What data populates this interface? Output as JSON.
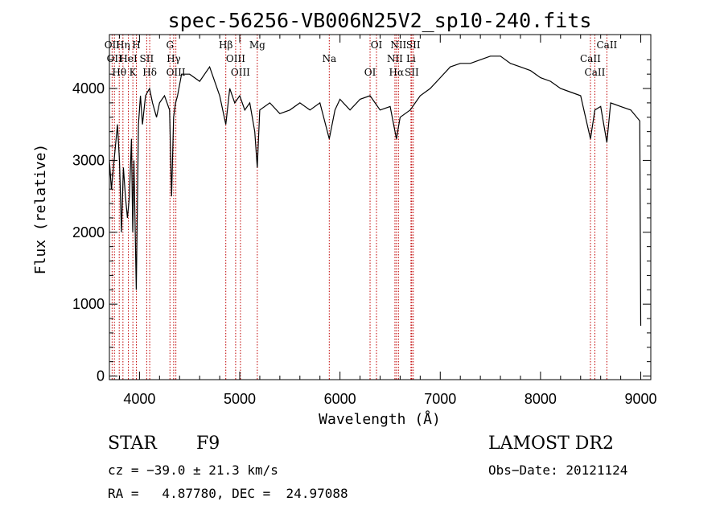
{
  "chart_data": {
    "type": "line",
    "title": "spec-56256-VB006N25V2_sp10-240.fits",
    "xlabel": "Wavelength (Å)",
    "ylabel": "Flux (relative)",
    "xlim": [
      3700,
      9100
    ],
    "ylim": [
      -50,
      4750
    ],
    "xticks": [
      4000,
      5000,
      6000,
      7000,
      8000,
      9000
    ],
    "yticks": [
      0,
      1000,
      2000,
      3000,
      4000
    ],
    "grid": false,
    "series": [
      {
        "color": "#000000",
        "x": [
          3700,
          3720,
          3740,
          3760,
          3780,
          3800,
          3820,
          3840,
          3860,
          3880,
          3900,
          3920,
          3933,
          3945,
          3968,
          3990,
          4010,
          4030,
          4060,
          4100,
          4130,
          4170,
          4200,
          4250,
          4300,
          4320,
          4340,
          4360,
          4380,
          4420,
          4500,
          4600,
          4700,
          4800,
          4861,
          4900,
          4950,
          5000,
          5050,
          5100,
          5150,
          5175,
          5200,
          5300,
          5400,
          5500,
          5600,
          5700,
          5800,
          5893,
          5950,
          6000,
          6100,
          6200,
          6300,
          6400,
          6500,
          6563,
          6600,
          6700,
          6800,
          6900,
          7000,
          7100,
          7200,
          7300,
          7400,
          7500,
          7600,
          7700,
          7800,
          7900,
          8000,
          8100,
          8200,
          8300,
          8400,
          8498,
          8542,
          8600,
          8662,
          8700,
          8800,
          8900,
          8990,
          9000
        ],
        "y": [
          3000,
          2600,
          2900,
          3200,
          3500,
          3000,
          2000,
          2900,
          2500,
          2200,
          2500,
          3300,
          2000,
          3000,
          1200,
          3500,
          3900,
          3500,
          3900,
          4000,
          3800,
          3600,
          3800,
          3900,
          3700,
          2500,
          3600,
          3800,
          3900,
          4200,
          4200,
          4100,
          4300,
          3900,
          3500,
          4000,
          3800,
          3900,
          3700,
          3800,
          3400,
          2900,
          3700,
          3800,
          3650,
          3700,
          3800,
          3700,
          3800,
          3300,
          3700,
          3850,
          3700,
          3850,
          3900,
          3700,
          3750,
          3300,
          3600,
          3700,
          3900,
          4000,
          4150,
          4300,
          4350,
          4350,
          4400,
          4450,
          4450,
          4350,
          4300,
          4250,
          4150,
          4100,
          4000,
          3950,
          3900,
          3300,
          3700,
          3750,
          3250,
          3800,
          3750,
          3700,
          3550,
          700
        ]
      }
    ],
    "lines": [
      {
        "wavelength": 3727,
        "label": "OII"
      },
      {
        "wavelength": 3750,
        "label": "OII"
      },
      {
        "wavelength": 3798,
        "label": "Hθ"
      },
      {
        "wavelength": 3835,
        "label": "Hη"
      },
      {
        "wavelength": 3889,
        "label": "HeI"
      },
      {
        "wavelength": 3934,
        "label": "K"
      },
      {
        "wavelength": 3969,
        "label": "H"
      },
      {
        "wavelength": 4072,
        "label": "SII"
      },
      {
        "wavelength": 4102,
        "label": "Hδ"
      },
      {
        "wavelength": 4304,
        "label": "G"
      },
      {
        "wavelength": 4341,
        "label": "Hγ"
      },
      {
        "wavelength": 4363,
        "label": "OIII"
      },
      {
        "wavelength": 4861,
        "label": "Hβ"
      },
      {
        "wavelength": 4959,
        "label": "OIII"
      },
      {
        "wavelength": 5007,
        "label": "OIII"
      },
      {
        "wavelength": 5175,
        "label": "Mg"
      },
      {
        "wavelength": 5893,
        "label": "Na"
      },
      {
        "wavelength": 6300,
        "label": "OI"
      },
      {
        "wavelength": 6364,
        "label": "OI"
      },
      {
        "wavelength": 6548,
        "label": "NII"
      },
      {
        "wavelength": 6563,
        "label": "Hα"
      },
      {
        "wavelength": 6583,
        "label": "NII"
      },
      {
        "wavelength": 6708,
        "label": "Li"
      },
      {
        "wavelength": 6716,
        "label": "SII"
      },
      {
        "wavelength": 6731,
        "label": "SII"
      },
      {
        "wavelength": 8498,
        "label": "CaII"
      },
      {
        "wavelength": 8542,
        "label": "CaII"
      },
      {
        "wavelength": 8662,
        "label": "CaII"
      }
    ],
    "line_color": "#c00000"
  },
  "info": {
    "class": "STAR",
    "subclass": "F9",
    "survey": "LAMOST DR2",
    "cz": "cz = −39.0 ± 21.3 km/s",
    "obs_date": "Obs−Date: 20121124",
    "radec": "RA =   4.87780, DEC =  24.97088"
  }
}
